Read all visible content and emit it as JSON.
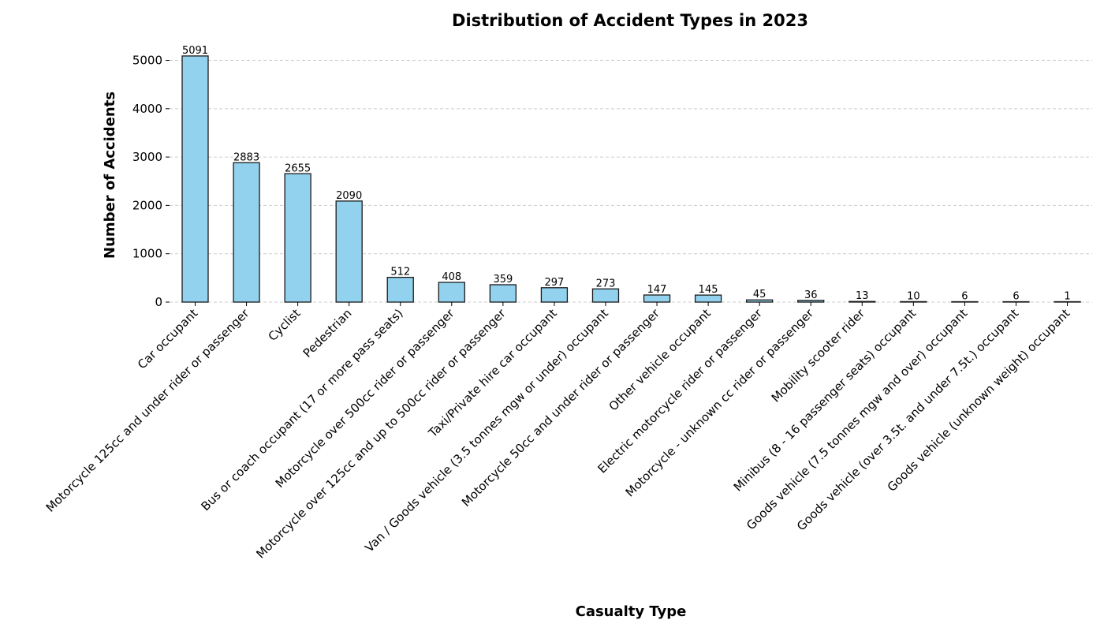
{
  "chart_data": {
    "type": "bar",
    "title": "Distribution of Accident Types in 2023",
    "xlabel": "Casualty Type",
    "ylabel": "Number of Accidents",
    "ylim": [
      0,
      5400
    ],
    "yticks": [
      0,
      1000,
      2000,
      3000,
      4000,
      5000
    ],
    "grid": "y-dashed",
    "bar_color": "#92d2ee",
    "bar_edge_color": "#1a1a1a",
    "categories": [
      "Car occupant",
      "Motorcycle 125cc and under rider or passenger",
      "Cyclist",
      "Pedestrian",
      "Bus or coach occupant (17 or more pass seats)",
      "Motorcycle over 500cc rider or passenger",
      "Motorcycle over 125cc and up to 500cc rider or  passenger",
      "Taxi/Private hire car occupant",
      "Van / Goods vehicle (3.5 tonnes mgw or under) occupant",
      "Motorcycle 50cc and under rider or passenger",
      "Other vehicle occupant",
      "Electric motorcycle rider or passenger",
      "Motorcycle - unknown cc rider or passenger",
      "Mobility scooter rider",
      "Minibus (8 - 16 passenger seats) occupant",
      "Goods vehicle (7.5 tonnes mgw and over) occupant",
      "Goods vehicle (over 3.5t. and under 7.5t.) occupant",
      "Goods vehicle (unknown weight) occupant"
    ],
    "values": [
      5091,
      2883,
      2655,
      2090,
      512,
      408,
      359,
      297,
      273,
      147,
      145,
      45,
      36,
      13,
      10,
      6,
      6,
      1
    ]
  }
}
